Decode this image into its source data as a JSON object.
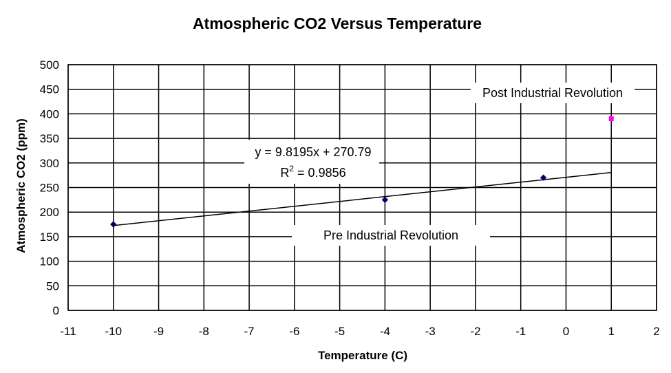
{
  "chart_data": {
    "type": "scatter",
    "title": "Atmospheric CO2 Versus Temperature",
    "xlabel": "Temperature (C)",
    "ylabel": "Atmospheric CO2 (ppm)",
    "xlim": [
      -11,
      2
    ],
    "ylim": [
      0,
      500
    ],
    "xticks": [
      -11,
      -10,
      -9,
      -8,
      -7,
      -6,
      -5,
      -4,
      -3,
      -2,
      -1,
      0,
      1,
      2
    ],
    "yticks": [
      0,
      50,
      100,
      150,
      200,
      250,
      300,
      350,
      400,
      450,
      500
    ],
    "grid": true,
    "series": [
      {
        "name": "Pre Industrial Revolution",
        "marker": "diamond",
        "color": "#000066",
        "points": [
          {
            "x": -10,
            "y": 175
          },
          {
            "x": -4,
            "y": 225
          },
          {
            "x": -0.5,
            "y": 270
          }
        ]
      },
      {
        "name": "Post Industrial Revolution",
        "marker": "square",
        "color": "#ff00ff",
        "points": [
          {
            "x": 1,
            "y": 390
          }
        ]
      }
    ],
    "trendline": {
      "slope": 9.8195,
      "intercept": 270.79,
      "x_range": [
        -10,
        1
      ],
      "equation_text": "y = 9.8195x + 270.79",
      "r2_prefix": "R",
      "r2_superscript": "2",
      "r2_suffix": " = 0.9856"
    },
    "annotations": [
      {
        "name": "post-industrial-label",
        "text": "Post Industrial Revolution"
      },
      {
        "name": "pre-industrial-label",
        "text": "Pre Industrial Revolution"
      }
    ]
  }
}
